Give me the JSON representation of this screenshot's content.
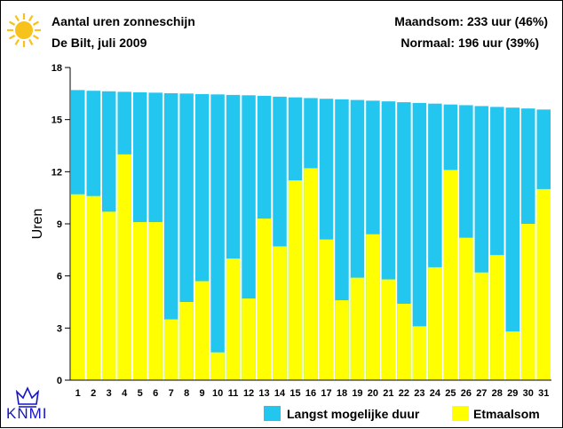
{
  "header": {
    "title": "Aantal uren zonneschijn",
    "subtitle": "De Bilt, juli 2009",
    "maandsom": "Maandsom: 233 uur (46%)",
    "normaal": "Normaal: 196 uur (39%)"
  },
  "logo": {
    "text": "KNMI"
  },
  "colors": {
    "langst": "#22c6ee",
    "etmaal": "#ffff00",
    "sun": "#f6c21b"
  },
  "chart_data": {
    "type": "bar",
    "title": "Aantal uren zonneschijn",
    "subtitle": "De Bilt, juli 2009",
    "ylabel": "Uren",
    "xlabel": "",
    "ylim": [
      0,
      18
    ],
    "yticks": [
      "0",
      "3",
      "6",
      "9",
      "12",
      "15",
      "18"
    ],
    "grid": false,
    "legend_position": "bottom-right",
    "categories": [
      "1",
      "2",
      "3",
      "4",
      "5",
      "6",
      "7",
      "8",
      "9",
      "10",
      "11",
      "12",
      "13",
      "14",
      "15",
      "16",
      "17",
      "18",
      "19",
      "20",
      "21",
      "22",
      "23",
      "24",
      "25",
      "26",
      "27",
      "28",
      "29",
      "30",
      "31"
    ],
    "series": [
      {
        "name": "Langst mogelijke duur",
        "values": [
          16.7,
          16.66,
          16.63,
          16.6,
          16.57,
          16.55,
          16.52,
          16.5,
          16.47,
          16.45,
          16.42,
          16.4,
          16.37,
          16.32,
          16.28,
          16.24,
          16.2,
          16.17,
          16.13,
          16.09,
          16.05,
          16.0,
          15.96,
          15.92,
          15.87,
          15.83,
          15.78,
          15.73,
          15.69,
          15.64,
          15.58
        ]
      },
      {
        "name": "Etmaalsom",
        "values": [
          10.7,
          10.6,
          9.7,
          13.0,
          9.1,
          9.1,
          3.5,
          4.5,
          5.7,
          1.6,
          7.0,
          4.7,
          9.3,
          7.7,
          11.5,
          12.2,
          8.1,
          4.6,
          5.9,
          8.4,
          5.8,
          4.4,
          3.1,
          6.5,
          12.1,
          8.2,
          6.2,
          7.2,
          2.8,
          9.0,
          11.0
        ]
      }
    ]
  }
}
